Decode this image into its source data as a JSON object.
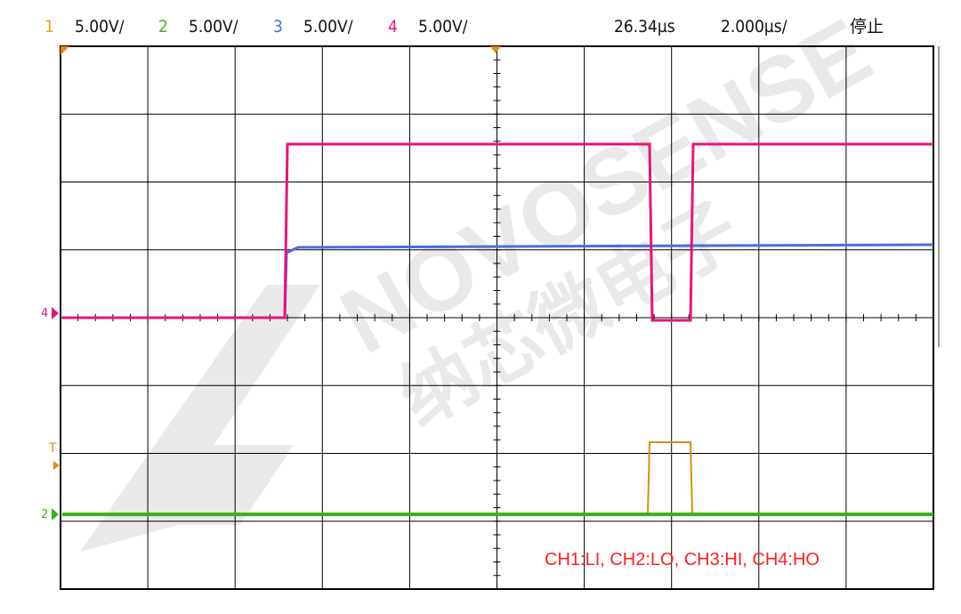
{
  "channels": [
    {
      "num": "1",
      "scale": "5.00V/",
      "color": "#f39c12"
    },
    {
      "num": "2",
      "scale": "5.00V/",
      "color": "#3cb021"
    },
    {
      "num": "3",
      "scale": "5.00V/",
      "color": "#4a6ee0"
    },
    {
      "num": "4",
      "scale": "5.00V/",
      "color": "#e5147c"
    }
  ],
  "timing": {
    "delay": "26.34µs",
    "timebase": "2.000µs/",
    "status": "停止"
  },
  "markers": {
    "trigger": "T",
    "ch2": "2",
    "ch4": "4"
  },
  "channel_note": "CH1:LI, CH2:LO, CH3:HI, CH4:HO",
  "watermark": {
    "brand": "NOVOSENSE",
    "cn": "纳芯微电子"
  }
}
